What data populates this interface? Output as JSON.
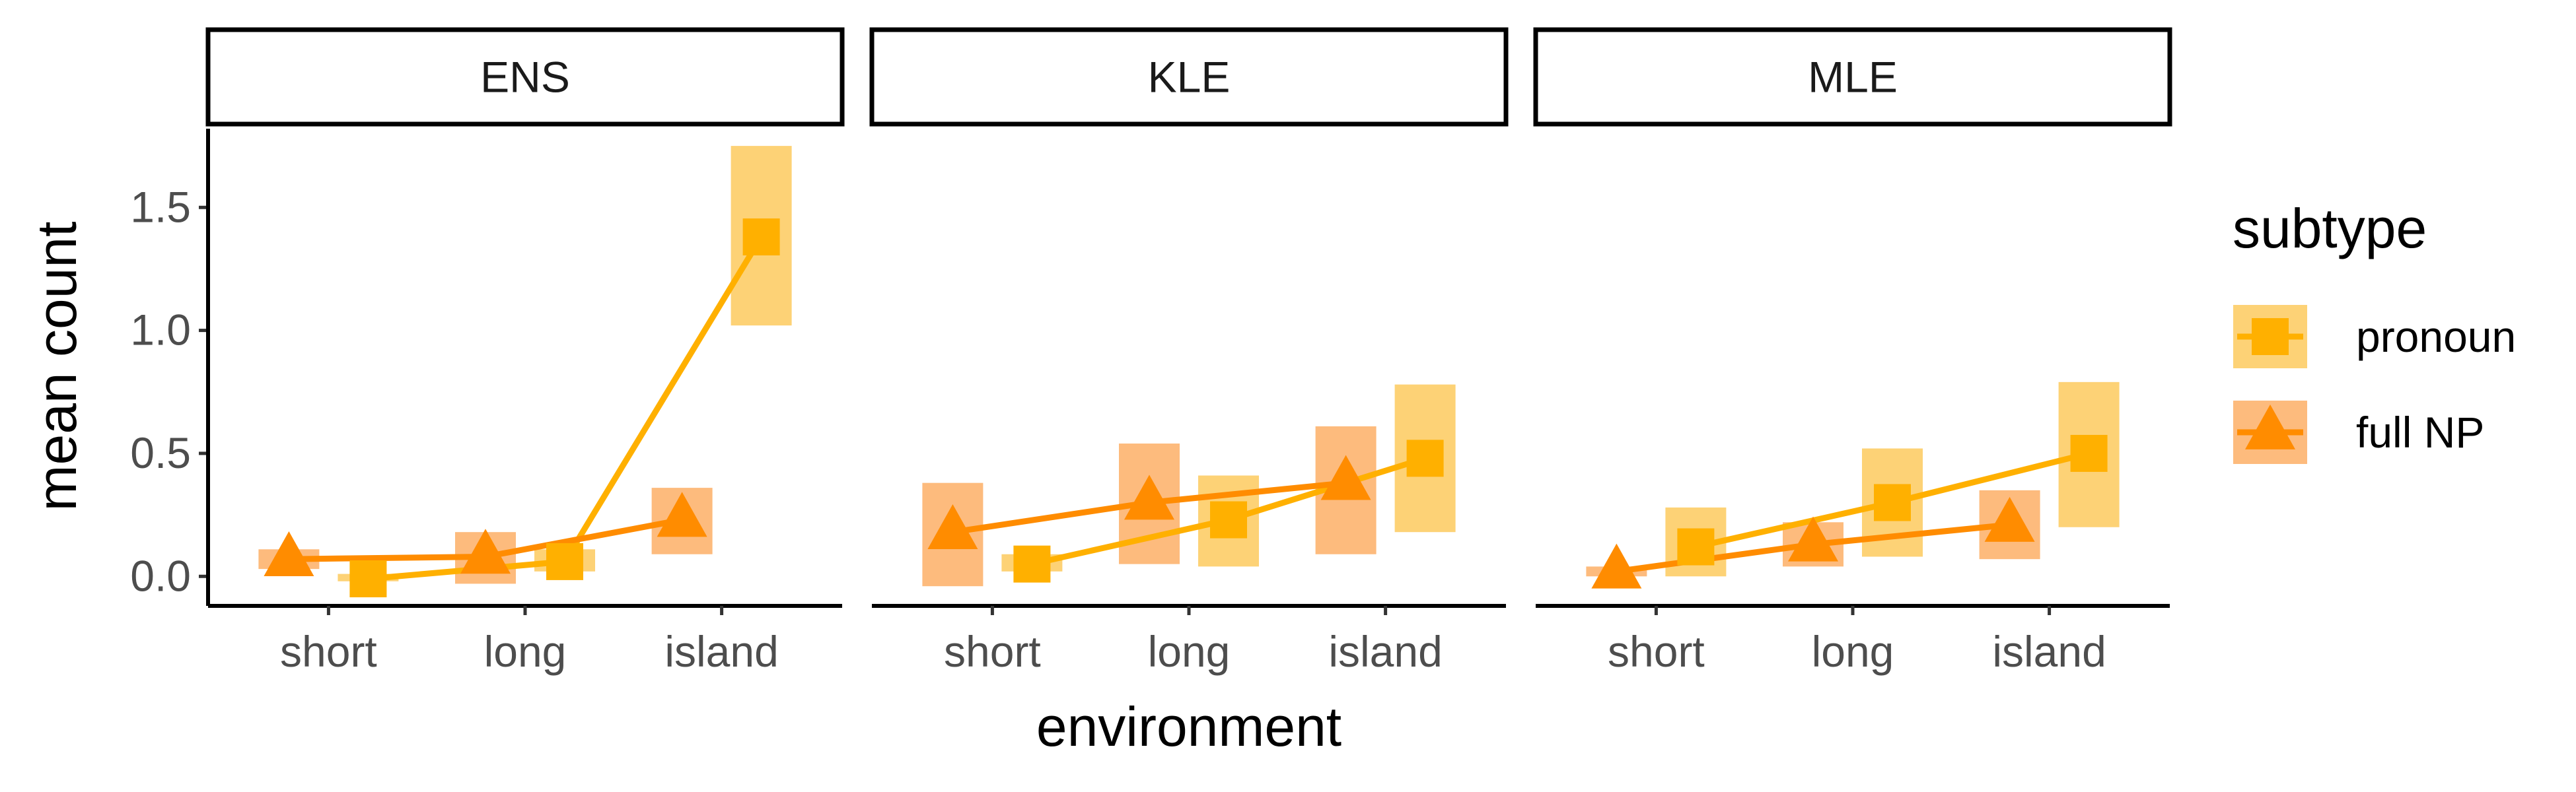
{
  "chart_data": {
    "type": "line",
    "xlabel": "environment",
    "ylabel": "mean count",
    "categories": [
      "short",
      "long",
      "island"
    ],
    "ylim": [
      -0.12,
      1.82
    ],
    "yticks": [
      0.0,
      0.5,
      1.0,
      1.5
    ],
    "ytick_labels": [
      "0.0",
      "0.5",
      "1.0",
      "1.5"
    ],
    "grid": false,
    "legend": {
      "title": "subtype",
      "position": "right",
      "entries": [
        {
          "label": "pronoun",
          "shape": "square",
          "color": "#FFB000",
          "fill": "#FDCA5E"
        },
        {
          "label": "full NP",
          "shape": "triangle",
          "color": "#FF8C00",
          "fill": "#FDAF66"
        }
      ]
    },
    "panels": [
      {
        "title": "ENS",
        "series": [
          {
            "name": "pronoun",
            "values": [
              -0.01,
              0.06,
              1.38
            ],
            "lower": [
              -0.02,
              0.02,
              1.02
            ],
            "upper": [
              0.01,
              0.11,
              1.75
            ]
          },
          {
            "name": "full NP",
            "values": [
              0.07,
              0.08,
              0.23
            ],
            "lower": [
              0.03,
              -0.03,
              0.09
            ],
            "upper": [
              0.11,
              0.18,
              0.36
            ]
          }
        ]
      },
      {
        "title": "KLE",
        "series": [
          {
            "name": "pronoun",
            "values": [
              0.05,
              0.23,
              0.48
            ],
            "lower": [
              0.02,
              0.04,
              0.18
            ],
            "upper": [
              0.09,
              0.41,
              0.78
            ]
          },
          {
            "name": "full NP",
            "values": [
              0.18,
              0.3,
              0.38
            ],
            "lower": [
              -0.04,
              0.05,
              0.09
            ],
            "upper": [
              0.38,
              0.54,
              0.61
            ]
          }
        ]
      },
      {
        "title": "MLE",
        "series": [
          {
            "name": "pronoun",
            "values": [
              0.12,
              0.3,
              0.5
            ],
            "lower": [
              0.0,
              0.08,
              0.2
            ],
            "upper": [
              0.28,
              0.52,
              0.79
            ]
          },
          {
            "name": "full NP",
            "values": [
              0.02,
              0.13,
              0.21
            ],
            "lower": [
              0.0,
              0.04,
              0.07
            ],
            "upper": [
              0.04,
              0.22,
              0.35
            ]
          }
        ]
      }
    ]
  }
}
